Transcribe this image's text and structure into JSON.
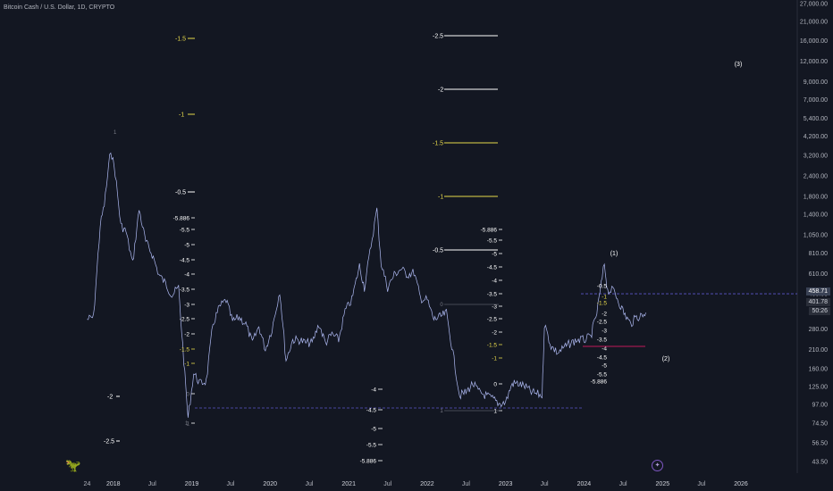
{
  "header": {
    "symbol_title": "Bitcoin Cash / U.S. Dollar, 1D, CRYPTO"
  },
  "colors": {
    "background": "#131722",
    "price_line": "#b7c3ff",
    "fib_white": "#ffffff",
    "fib_yellow": "#e6d84a",
    "dashed": "#5b57c9"
  },
  "icons": {
    "logo": "tradingview-dino-icon",
    "bottom": "magic-icon"
  },
  "price_tags": {
    "last": "458.71",
    "second": "401.78",
    "countdown": "50:26"
  },
  "chart_data": {
    "type": "line",
    "title": "Bitcoin Cash / U.S. Dollar, 1D, CRYPTO",
    "y_scale": "log",
    "y_ticks": [
      "27,000.00",
      "21,000.00",
      "16,000.00",
      "12,000.00",
      "9,000.00",
      "7,000.00",
      "5,400.00",
      "4,200.00",
      "3,200.00",
      "2,400.00",
      "1,800.00",
      "1,400.00",
      "1,050.00",
      "810.00",
      "610.00",
      "460.00",
      "350.00",
      "280.00",
      "210.00",
      "160.00",
      "125.00",
      "97.00",
      "74.50",
      "56.50",
      "43.50"
    ],
    "x_ticks": [
      "24",
      "2018",
      "Jul",
      "2019",
      "Jul",
      "2020",
      "Jul",
      "2021",
      "Jul",
      "2022",
      "Jul",
      "2023",
      "Jul",
      "2024",
      "Jul",
      "2025",
      "Jul",
      "2026"
    ],
    "series": [
      {
        "values": [
          [
            "2017-09-01",
            320
          ],
          [
            "2017-10-01",
            330
          ],
          [
            "2017-11-01",
            1200
          ],
          [
            "2017-11-20",
            1600
          ],
          [
            "2017-12-20",
            3500
          ],
          [
            "2018-01-10",
            2500
          ],
          [
            "2018-02-05",
            1200
          ],
          [
            "2018-03-01",
            1100
          ],
          [
            "2018-04-01",
            700
          ],
          [
            "2018-05-01",
            1500
          ],
          [
            "2018-06-01",
            950
          ],
          [
            "2018-07-01",
            800
          ],
          [
            "2018-08-01",
            600
          ],
          [
            "2018-09-01",
            530
          ],
          [
            "2018-10-01",
            450
          ],
          [
            "2018-11-01",
            500
          ],
          [
            "2018-11-25",
            180
          ],
          [
            "2018-12-15",
            80
          ],
          [
            "2019-01-10",
            150
          ],
          [
            "2019-02-10",
            130
          ],
          [
            "2019-03-10",
            135
          ],
          [
            "2019-04-10",
            300
          ],
          [
            "2019-05-10",
            380
          ],
          [
            "2019-06-10",
            420
          ],
          [
            "2019-07-10",
            310
          ],
          [
            "2019-08-10",
            330
          ],
          [
            "2019-09-10",
            300
          ],
          [
            "2019-10-10",
            230
          ],
          [
            "2019-11-10",
            290
          ],
          [
            "2019-12-10",
            210
          ],
          [
            "2020-01-10",
            280
          ],
          [
            "2020-02-15",
            480
          ],
          [
            "2020-03-15",
            180
          ],
          [
            "2020-04-15",
            240
          ],
          [
            "2020-05-15",
            240
          ],
          [
            "2020-06-15",
            230
          ],
          [
            "2020-07-15",
            230
          ],
          [
            "2020-08-15",
            300
          ],
          [
            "2020-09-15",
            230
          ],
          [
            "2020-10-15",
            260
          ],
          [
            "2020-11-15",
            240
          ],
          [
            "2020-12-15",
            360
          ],
          [
            "2021-01-15",
            420
          ],
          [
            "2021-02-20",
            680
          ],
          [
            "2021-03-15",
            500
          ],
          [
            "2021-04-20",
            1000
          ],
          [
            "2021-05-12",
            1500
          ],
          [
            "2021-06-01",
            700
          ],
          [
            "2021-07-01",
            500
          ],
          [
            "2021-08-01",
            600
          ],
          [
            "2021-09-01",
            650
          ],
          [
            "2021-10-01",
            600
          ],
          [
            "2021-11-01",
            620
          ],
          [
            "2021-12-01",
            430
          ],
          [
            "2022-01-01",
            420
          ],
          [
            "2022-02-01",
            320
          ],
          [
            "2022-03-01",
            330
          ],
          [
            "2022-04-01",
            350
          ],
          [
            "2022-05-01",
            200
          ],
          [
            "2022-06-01",
            110
          ],
          [
            "2022-07-01",
            115
          ],
          [
            "2022-08-01",
            130
          ],
          [
            "2022-09-01",
            115
          ],
          [
            "2022-10-01",
            110
          ],
          [
            "2022-11-01",
            105
          ],
          [
            "2022-12-01",
            98
          ],
          [
            "2023-01-01",
            100
          ],
          [
            "2023-02-01",
            130
          ],
          [
            "2023-03-01",
            130
          ],
          [
            "2023-04-01",
            125
          ],
          [
            "2023-05-01",
            115
          ],
          [
            "2023-06-20",
            110
          ],
          [
            "2023-07-01",
            300
          ],
          [
            "2023-08-01",
            220
          ],
          [
            "2023-09-01",
            200
          ],
          [
            "2023-10-01",
            215
          ],
          [
            "2023-11-01",
            230
          ],
          [
            "2023-12-01",
            240
          ],
          [
            "2024-01-01",
            240
          ],
          [
            "2024-02-01",
            250
          ],
          [
            "2024-03-01",
            350
          ],
          [
            "2024-04-05",
            700
          ],
          [
            "2024-04-20",
            480
          ],
          [
            "2024-05-20",
            480
          ],
          [
            "2024-06-15",
            400
          ],
          [
            "2024-07-05",
            350
          ],
          [
            "2024-08-05",
            300
          ],
          [
            "2024-09-01",
            330
          ],
          [
            "2024-10-01",
            340
          ],
          [
            "2024-10-20",
            360
          ]
        ]
      }
    ],
    "reference_levels": [
      {
        "label": "-2.5",
        "color": "yellow",
        "value": 18000
      },
      {
        "label": "-1.5",
        "color": "yellow",
        "value": 13000
      },
      {
        "label": "-1",
        "color": "yellow",
        "value": 7000
      },
      {
        "label": "-0.5",
        "color": "white",
        "value": 2000
      },
      {
        "label": "-2",
        "color": "white",
        "value": 7700
      },
      {
        "label": "-1.5",
        "color": "yellow",
        "value": 4400
      },
      {
        "label": "-1",
        "color": "yellow",
        "value": 1900
      },
      {
        "label": "-0.5",
        "color": "white",
        "value": 780
      },
      {
        "label": "-2",
        "color": "white",
        "value": 125
      },
      {
        "label": "-2.5",
        "color": "white",
        "value": 63
      }
    ],
    "fib_ladders": [
      {
        "labels": [
          "-5.886",
          "-5.5",
          "-5",
          "-4.5",
          "-4",
          "-3.5",
          "-3",
          "-2.5",
          "-2",
          "-1.5",
          "-1",
          "0",
          "1"
        ]
      },
      {
        "labels": [
          "-5.886",
          "-5.5",
          "-5",
          "-4.5",
          "-4",
          "-3.5",
          "-3",
          "-2.5",
          "-2",
          "-1.5",
          "-1",
          "0",
          "1"
        ]
      },
      {
        "labels": [
          "-0.5",
          "-1",
          "-1.5",
          "-2",
          "-2.5",
          "-3",
          "-3.5",
          "-4",
          "-4.5",
          "-5",
          "-5.5",
          "-5.886"
        ]
      }
    ],
    "annotations": [
      "(1)",
      "(2)",
      "(3)"
    ],
    "lower_ladder": [
      "-4",
      "-4.5",
      "-5",
      "-5.5",
      "-5.886"
    ],
    "horizontal_dashed": [
      458.71,
      94
    ],
    "last_price": 458.71
  }
}
